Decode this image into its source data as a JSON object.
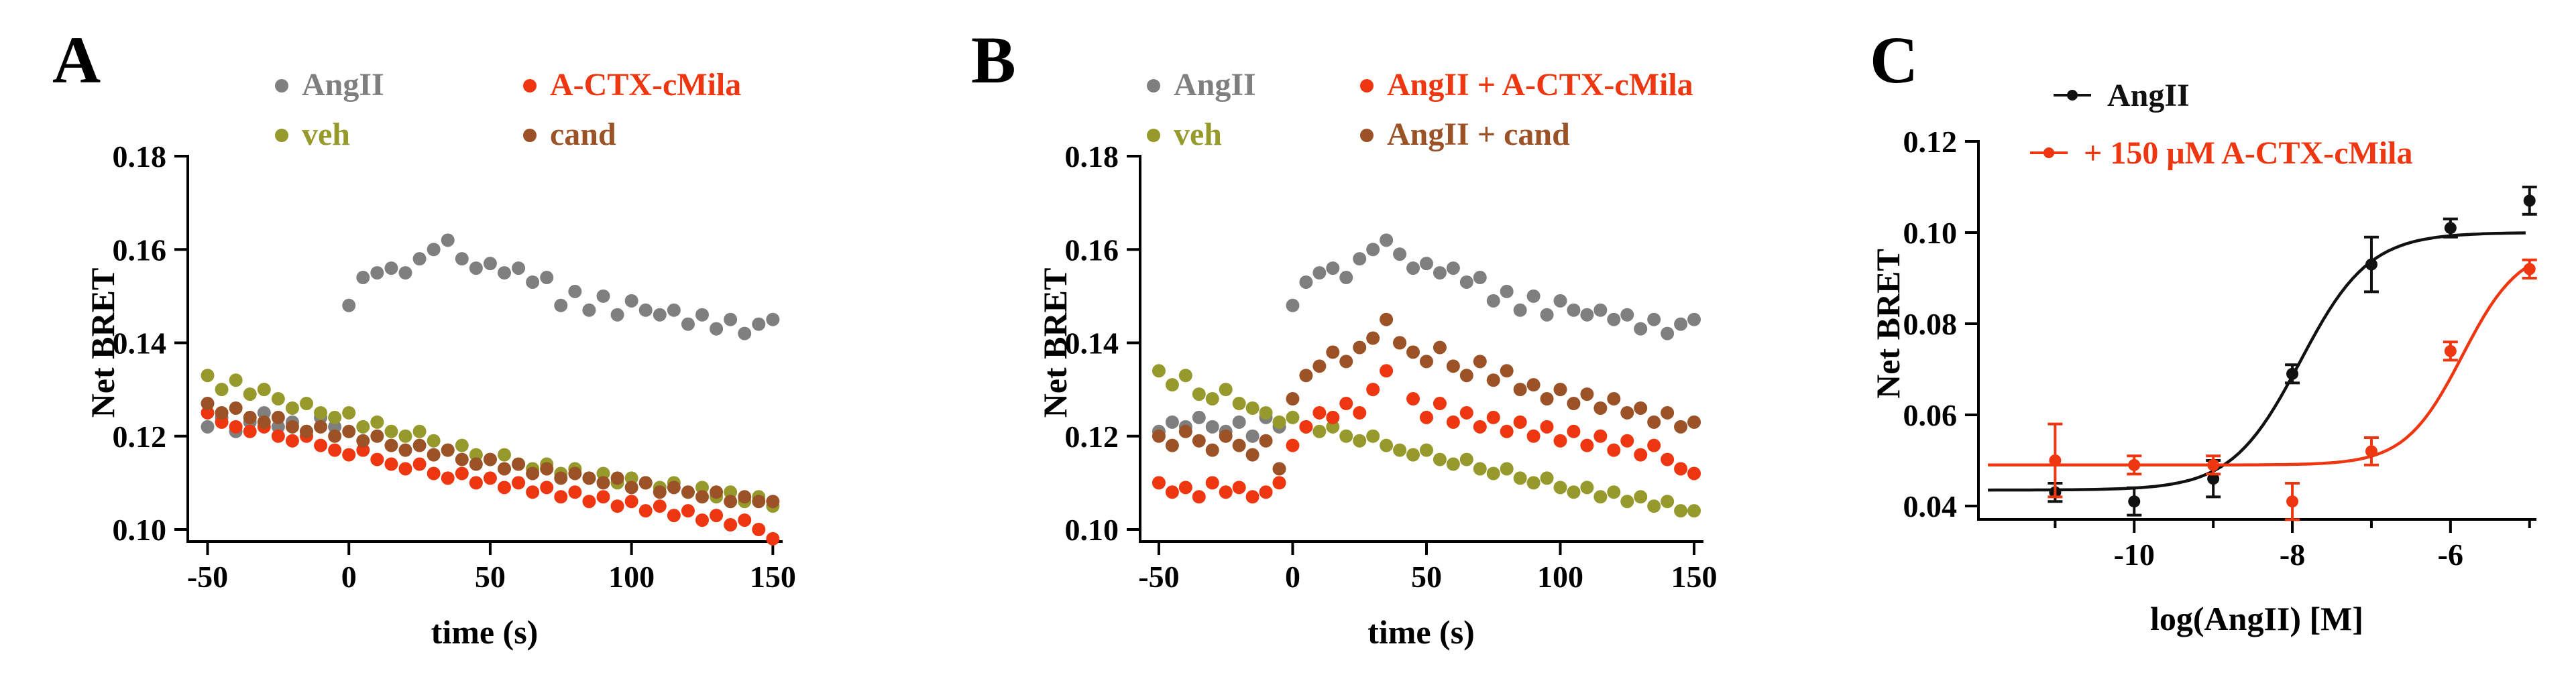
{
  "figure": {
    "background": "#ffffff"
  },
  "chart_data": [
    {
      "panel_label": "A",
      "type": "scatter",
      "xlabel": "time (s)",
      "ylabel": "Net BRET",
      "xlim": [
        -57,
        153
      ],
      "ylim": [
        0.1,
        0.18
      ],
      "xticks": [
        -50,
        0,
        50,
        100,
        150
      ],
      "yticks": [
        0.1,
        0.12,
        0.14,
        0.16,
        0.18
      ],
      "x": [
        -50,
        -45,
        -40,
        -35,
        -30,
        -25,
        -20,
        -15,
        -10,
        -5,
        0,
        5,
        10,
        15,
        20,
        25,
        30,
        35,
        40,
        45,
        50,
        55,
        60,
        65,
        70,
        75,
        80,
        85,
        90,
        95,
        100,
        105,
        110,
        115,
        120,
        125,
        130,
        135,
        140,
        145,
        150
      ],
      "series": [
        {
          "name": "AngII",
          "color": "#7f7f7f",
          "values": [
            0.122,
            0.124,
            0.121,
            0.123,
            0.125,
            0.122,
            0.123,
            0.121,
            0.124,
            0.122,
            0.148,
            0.154,
            0.155,
            0.156,
            0.155,
            0.158,
            0.16,
            0.162,
            0.158,
            0.156,
            0.157,
            0.155,
            0.156,
            0.153,
            0.154,
            0.148,
            0.151,
            0.147,
            0.15,
            0.146,
            0.149,
            0.147,
            0.146,
            0.147,
            0.144,
            0.146,
            0.143,
            0.145,
            0.142,
            0.144,
            0.145
          ]
        },
        {
          "name": "veh",
          "color": "#96992b",
          "values": [
            0.133,
            0.13,
            0.132,
            0.129,
            0.13,
            0.128,
            0.126,
            0.127,
            0.125,
            0.124,
            0.125,
            0.122,
            0.123,
            0.121,
            0.12,
            0.121,
            0.119,
            0.117,
            0.118,
            0.116,
            0.115,
            0.116,
            0.114,
            0.113,
            0.114,
            0.112,
            0.113,
            0.111,
            0.112,
            0.11,
            0.111,
            0.11,
            0.109,
            0.11,
            0.108,
            0.109,
            0.107,
            0.108,
            0.106,
            0.107,
            0.105
          ]
        },
        {
          "name": "A-CTX-cMila",
          "color": "#ee3611",
          "values": [
            0.125,
            0.123,
            0.122,
            0.121,
            0.122,
            0.12,
            0.119,
            0.12,
            0.118,
            0.117,
            0.116,
            0.117,
            0.115,
            0.114,
            0.113,
            0.114,
            0.112,
            0.111,
            0.112,
            0.11,
            0.111,
            0.109,
            0.11,
            0.108,
            0.109,
            0.107,
            0.108,
            0.106,
            0.107,
            0.105,
            0.106,
            0.104,
            0.105,
            0.103,
            0.104,
            0.102,
            0.103,
            0.101,
            0.102,
            0.1,
            0.098
          ]
        },
        {
          "name": "cand",
          "color": "#9a5226",
          "values": [
            0.127,
            0.125,
            0.126,
            0.124,
            0.123,
            0.124,
            0.122,
            0.121,
            0.122,
            0.12,
            0.121,
            0.119,
            0.12,
            0.118,
            0.117,
            0.118,
            0.116,
            0.117,
            0.115,
            0.114,
            0.115,
            0.113,
            0.114,
            0.112,
            0.113,
            0.111,
            0.112,
            0.111,
            0.11,
            0.111,
            0.109,
            0.11,
            0.108,
            0.109,
            0.108,
            0.107,
            0.108,
            0.106,
            0.107,
            0.106,
            0.106
          ]
        }
      ]
    },
    {
      "panel_label": "B",
      "type": "scatter",
      "xlabel": "time (s)",
      "ylabel": "Net BRET",
      "xlim": [
        -57,
        153
      ],
      "ylim": [
        0.1,
        0.18
      ],
      "xticks": [
        -50,
        0,
        50,
        100,
        150
      ],
      "yticks": [
        0.1,
        0.12,
        0.14,
        0.16,
        0.18
      ],
      "x": [
        -50,
        -45,
        -40,
        -35,
        -30,
        -25,
        -20,
        -15,
        -10,
        -5,
        0,
        5,
        10,
        15,
        20,
        25,
        30,
        35,
        40,
        45,
        50,
        55,
        60,
        65,
        70,
        75,
        80,
        85,
        90,
        95,
        100,
        105,
        110,
        115,
        120,
        125,
        130,
        135,
        140,
        145,
        150
      ],
      "series": [
        {
          "name": "AngII",
          "color": "#7f7f7f",
          "values": [
            0.121,
            0.123,
            0.122,
            0.124,
            0.122,
            0.121,
            0.123,
            0.12,
            0.124,
            0.122,
            0.148,
            0.153,
            0.155,
            0.156,
            0.154,
            0.158,
            0.16,
            0.162,
            0.159,
            0.156,
            0.157,
            0.155,
            0.156,
            0.153,
            0.154,
            0.149,
            0.151,
            0.147,
            0.15,
            0.146,
            0.149,
            0.147,
            0.146,
            0.147,
            0.145,
            0.146,
            0.143,
            0.145,
            0.142,
            0.144,
            0.145
          ]
        },
        {
          "name": "veh",
          "color": "#96992b",
          "values": [
            0.134,
            0.131,
            0.133,
            0.129,
            0.128,
            0.13,
            0.127,
            0.126,
            0.125,
            0.123,
            0.124,
            0.122,
            0.121,
            0.122,
            0.12,
            0.119,
            0.12,
            0.118,
            0.117,
            0.116,
            0.117,
            0.115,
            0.114,
            0.115,
            0.113,
            0.112,
            0.113,
            0.111,
            0.11,
            0.111,
            0.109,
            0.108,
            0.109,
            0.107,
            0.108,
            0.106,
            0.107,
            0.105,
            0.106,
            0.104,
            0.104
          ]
        },
        {
          "name": "AngII + A-CTX-cMila",
          "color": "#ee3611",
          "values": [
            0.11,
            0.108,
            0.109,
            0.107,
            0.11,
            0.108,
            0.109,
            0.107,
            0.108,
            0.11,
            0.118,
            0.122,
            0.125,
            0.124,
            0.127,
            0.125,
            0.13,
            0.134,
            0.14,
            0.128,
            0.124,
            0.127,
            0.123,
            0.125,
            0.122,
            0.124,
            0.121,
            0.123,
            0.12,
            0.122,
            0.119,
            0.121,
            0.118,
            0.12,
            0.117,
            0.119,
            0.116,
            0.118,
            0.115,
            0.113,
            0.112
          ]
        },
        {
          "name": "AngII + cand",
          "color": "#9a5226",
          "values": [
            0.12,
            0.118,
            0.121,
            0.119,
            0.117,
            0.12,
            0.118,
            0.116,
            0.119,
            0.113,
            0.128,
            0.133,
            0.135,
            0.138,
            0.136,
            0.139,
            0.141,
            0.145,
            0.14,
            0.138,
            0.136,
            0.139,
            0.135,
            0.133,
            0.136,
            0.132,
            0.134,
            0.13,
            0.131,
            0.128,
            0.13,
            0.127,
            0.129,
            0.126,
            0.128,
            0.125,
            0.126,
            0.123,
            0.125,
            0.122,
            0.123
          ]
        }
      ]
    },
    {
      "panel_label": "C",
      "type": "scatter-fit",
      "xlabel": "log(AngII) [M]",
      "ylabel": "Net BRET",
      "xlim": [
        -11.97,
        -4.93
      ],
      "ylim": [
        0.04,
        0.12
      ],
      "xticks": [
        -10,
        -8,
        -6
      ],
      "xticks_minor": [
        -11,
        -9,
        -7,
        -5
      ],
      "yticks": [
        0.04,
        0.06,
        0.08,
        0.1,
        0.12
      ],
      "x": [
        -11,
        -10,
        -9,
        -8,
        -7,
        -6,
        -5
      ],
      "series": [
        {
          "name": "AngII",
          "color": "#111111",
          "values": [
            0.043,
            0.041,
            0.046,
            0.069,
            0.093,
            0.101,
            0.107
          ],
          "errors": [
            0.002,
            0.003,
            0.004,
            0.002,
            0.006,
            0.002,
            0.003
          ],
          "fit": {
            "bottom": 0.0435,
            "top": 0.1,
            "logec50": -7.9,
            "hill": 1.0
          }
        },
        {
          "name": "+ 150 μM A-CTX-cMila",
          "color": "#ee3611",
          "values": [
            0.05,
            0.049,
            0.049,
            0.041,
            0.052,
            0.074,
            0.092
          ],
          "errors": [
            0.008,
            0.002,
            0.002,
            0.004,
            0.003,
            0.002,
            0.002
          ],
          "fit": {
            "bottom": 0.049,
            "top": 0.097,
            "logec50": -5.85,
            "hill": 1.2
          }
        }
      ]
    }
  ]
}
